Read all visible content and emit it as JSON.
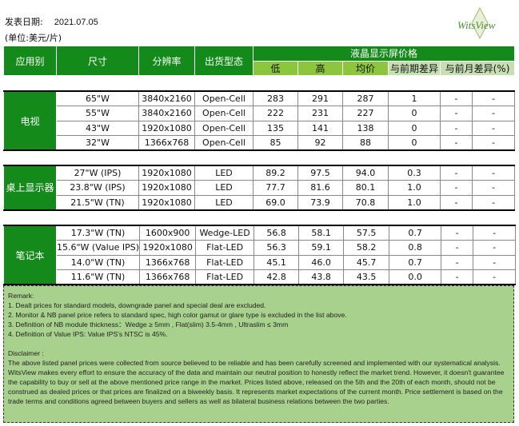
{
  "header": {
    "date_label": "发表日期:",
    "date_value": "2021.07.05",
    "unit": "(单位:美元/片)",
    "logo": "WitsView"
  },
  "table": {
    "columns": {
      "application": "应用别",
      "size": "尺寸",
      "resolution": "分辨率",
      "shipment": "出货型态",
      "price_group": "液晶显示屏价格",
      "low": "低",
      "high": "高",
      "avg": "均价",
      "diff_prev": "与前期差异",
      "diff_month": "与前月差异(%)"
    },
    "sections": [
      {
        "category": "电视",
        "rows": [
          [
            "65\"W",
            "3840x2160",
            "Open-Cell",
            "283",
            "291",
            "287",
            "1",
            "-",
            "-"
          ],
          [
            "55\"W",
            "3840x2160",
            "Open-Cell",
            "222",
            "231",
            "227",
            "0",
            "-",
            "-"
          ],
          [
            "43\"W",
            "1920x1080",
            "Open-Cell",
            "135",
            "141",
            "138",
            "0",
            "-",
            "-"
          ],
          [
            "32\"W",
            "1366x768",
            "Open-Cell",
            "85",
            "92",
            "88",
            "0",
            "-",
            "-"
          ]
        ]
      },
      {
        "category": "桌上显示器",
        "rows": [
          [
            "27\"W (IPS)",
            "1920x1080",
            "LED",
            "89.2",
            "97.5",
            "94.0",
            "0.3",
            "-",
            "-"
          ],
          [
            "23.8\"W (IPS)",
            "1920x1080",
            "LED",
            "77.7",
            "81.6",
            "80.1",
            "1.0",
            "-",
            "-"
          ],
          [
            "21.5\"W (TN)",
            "1920x1080",
            "LED",
            "69.0",
            "73.9",
            "70.8",
            "1.0",
            "-",
            "-"
          ]
        ]
      },
      {
        "category": "笔记本",
        "rows": [
          [
            "17.3\"W (TN)",
            "1600x900",
            "Wedge-LED",
            "56.8",
            "58.1",
            "57.5",
            "0.7",
            "-",
            "-"
          ],
          [
            "15.6\"W (Value IPS)",
            "1920x1080",
            "Flat-LED",
            "56.3",
            "59.1",
            "58.2",
            "0.8",
            "-",
            "-"
          ],
          [
            "14.0\"W (TN)",
            "1366x768",
            "Flat-LED",
            "45.1",
            "46.0",
            "45.7",
            "0.7",
            "-",
            "-"
          ],
          [
            "11.6\"W (TN)",
            "1366x768",
            "Flat-LED",
            "42.8",
            "43.8",
            "43.5",
            "0.0",
            "-",
            "-"
          ]
        ]
      }
    ]
  },
  "remark": {
    "title": "Remark:",
    "items": [
      "1. Dealt prices for standard models, downgrade panel and special deal are excluded.",
      "2. Monitor & NB panel price refers to standard spec, high color gamut or glare type is excluded in the list above.",
      "3. Definition of NB module thickness：Wedge ≥ 5mm , Flat(slim) 3.5-4mm , Ultraslim ≤ 3mm",
      "4. Definition of Value IPS: Value IPS's NTSC is 45%."
    ],
    "disclaimer_title": "Disclaimer :",
    "disclaimer": "The above listed panel prices were collected from source believed to be reliable and has been carefully screened and implemented with our systematical analysis. WitsView makes every effort to ensure the accuracy of the data and maintain our neutral position to honestly reflect the market trend. However, it doesn't guarantee the capability to buy or sell at the above mentioned price range in the market. Prices listed above, released on the 5th and the 20th of each month, should not be construed as dealed prices or that prices are finalized on a biweekly basis. It represents market expectations of the current month. Price settlement is based on the trade terms and conditions agreed between buyers and sellers as well as bilateral business relations between the two parties."
  },
  "colors": {
    "header_green": "#138a19",
    "price_green": "#8cc63f",
    "diff_green": "#c6e0b4",
    "remark_bg": "#a9d18e"
  }
}
